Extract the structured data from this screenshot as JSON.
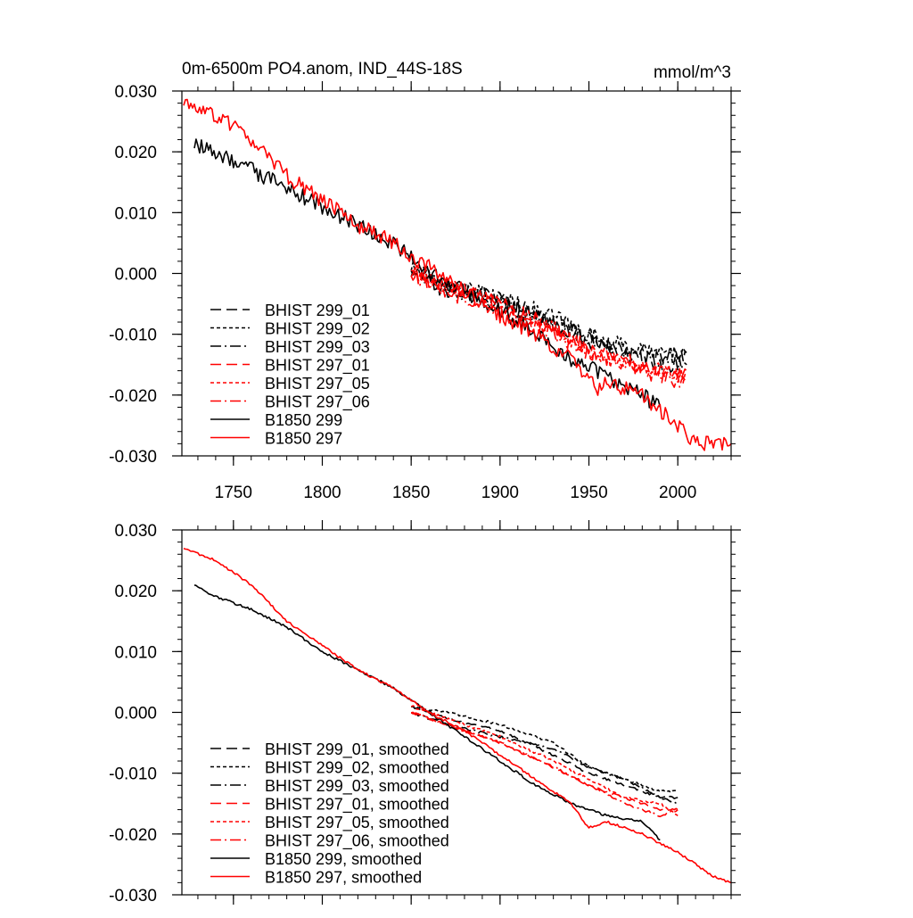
{
  "header": {
    "title": "0m-6500m PO4.anom, IND_44S-18S",
    "units": "mmol/m^3"
  },
  "colors": {
    "black": "#000000",
    "red": "#ff0000"
  },
  "chart_data": [
    {
      "type": "line",
      "panel": "top",
      "title": "0m-6500m PO4.anom, IND_44S-18S",
      "units": "mmol/m^3",
      "xlim": [
        1721,
        2030
      ],
      "ylim": [
        -0.03,
        0.03
      ],
      "x_ticks": [
        1750,
        1800,
        1850,
        1900,
        1950,
        2000
      ],
      "x_tick_labels": [
        "1750",
        "1800",
        "1850",
        "1900",
        "1950",
        "2000"
      ],
      "y_ticks": [
        0.03,
        0.02,
        0.01,
        0.0,
        -0.01,
        -0.02,
        -0.03
      ],
      "y_tick_labels": [
        "0.030",
        "0.020",
        "0.010",
        "0.000",
        "-0.010",
        "-0.020",
        "-0.030"
      ],
      "legend_position": "lower-left",
      "series": [
        {
          "name": "BHIST 299_01",
          "color": "#000000",
          "dash": "long-dash",
          "noise": 0.0013,
          "x": [
            1850,
            1870,
            1900,
            1930,
            1950,
            1970,
            1990,
            2005
          ],
          "y": [
            0.001,
            -0.002,
            -0.004,
            -0.008,
            -0.011,
            -0.013,
            -0.014,
            -0.013
          ]
        },
        {
          "name": "BHIST 299_02",
          "color": "#000000",
          "dash": "short-dash",
          "noise": 0.0013,
          "x": [
            1850,
            1870,
            1900,
            1930,
            1950,
            1970,
            1990,
            2005
          ],
          "y": [
            0.001,
            -0.002,
            -0.004,
            -0.007,
            -0.01,
            -0.012,
            -0.013,
            -0.013
          ]
        },
        {
          "name": "BHIST 299_03",
          "color": "#000000",
          "dash": "dash-dot",
          "noise": 0.0013,
          "x": [
            1850,
            1870,
            1900,
            1930,
            1950,
            1970,
            1990,
            2005
          ],
          "y": [
            0.0,
            -0.003,
            -0.005,
            -0.008,
            -0.011,
            -0.013,
            -0.015,
            -0.015
          ]
        },
        {
          "name": "BHIST 297_01",
          "color": "#ff0000",
          "dash": "long-dash",
          "noise": 0.0013,
          "x": [
            1850,
            1870,
            1900,
            1930,
            1950,
            1970,
            1990,
            2005
          ],
          "y": [
            0.0,
            -0.002,
            -0.005,
            -0.009,
            -0.012,
            -0.014,
            -0.016,
            -0.016
          ]
        },
        {
          "name": "BHIST 297_05",
          "color": "#ff0000",
          "dash": "short-dash",
          "noise": 0.0013,
          "x": [
            1850,
            1870,
            1900,
            1930,
            1950,
            1970,
            1990,
            2005
          ],
          "y": [
            0.001,
            -0.002,
            -0.005,
            -0.009,
            -0.013,
            -0.015,
            -0.016,
            -0.017
          ]
        },
        {
          "name": "BHIST 297_06",
          "color": "#ff0000",
          "dash": "dash-dot",
          "noise": 0.0013,
          "x": [
            1850,
            1870,
            1900,
            1930,
            1950,
            1970,
            1990,
            2005
          ],
          "y": [
            0.0,
            -0.003,
            -0.006,
            -0.01,
            -0.013,
            -0.015,
            -0.017,
            -0.018
          ]
        },
        {
          "name": "B1850 299",
          "color": "#000000",
          "dash": "solid",
          "noise": 0.0013,
          "x": [
            1728,
            1740,
            1760,
            1780,
            1800,
            1820,
            1840,
            1860,
            1880,
            1900,
            1920,
            1940,
            1960,
            1980,
            1990
          ],
          "y": [
            0.021,
            0.02,
            0.017,
            0.014,
            0.011,
            0.008,
            0.005,
            0.0,
            -0.003,
            -0.006,
            -0.01,
            -0.014,
            -0.017,
            -0.02,
            -0.022
          ]
        },
        {
          "name": "B1850 297",
          "color": "#ff0000",
          "dash": "solid",
          "noise": 0.0013,
          "x": [
            1722,
            1740,
            1760,
            1780,
            1800,
            1820,
            1840,
            1860,
            1880,
            1900,
            1920,
            1940,
            1955,
            1960,
            1980,
            2000,
            2010,
            2030
          ],
          "y": [
            0.028,
            0.026,
            0.022,
            0.016,
            0.012,
            0.008,
            0.005,
            0.001,
            -0.003,
            -0.007,
            -0.01,
            -0.014,
            -0.019,
            -0.018,
            -0.02,
            -0.025,
            -0.028,
            -0.028
          ]
        }
      ]
    },
    {
      "type": "line",
      "panel": "bottom",
      "xlim": [
        1721,
        2030
      ],
      "ylim": [
        -0.03,
        0.03
      ],
      "x_ticks": [
        1750,
        1800,
        1850,
        1900,
        1950,
        2000
      ],
      "y_ticks": [
        0.03,
        0.02,
        0.01,
        0.0,
        -0.01,
        -0.02,
        -0.03
      ],
      "y_tick_labels": [
        "0.030",
        "0.020",
        "0.010",
        "0.000",
        "-0.010",
        "-0.020",
        "-0.030"
      ],
      "legend_position": "lower-left",
      "series": [
        {
          "name": "BHIST 299_01, smoothed",
          "color": "#000000",
          "dash": "long-dash",
          "noise": 0.0002,
          "x": [
            1850,
            1870,
            1900,
            1930,
            1950,
            1970,
            1990,
            2000
          ],
          "y": [
            0.001,
            -0.001,
            -0.003,
            -0.007,
            -0.01,
            -0.012,
            -0.014,
            -0.014
          ]
        },
        {
          "name": "BHIST 299_02, smoothed",
          "color": "#000000",
          "dash": "short-dash",
          "noise": 0.0002,
          "x": [
            1850,
            1870,
            1900,
            1930,
            1950,
            1970,
            1990,
            2000
          ],
          "y": [
            0.001,
            0.0,
            -0.002,
            -0.005,
            -0.009,
            -0.011,
            -0.013,
            -0.013
          ]
        },
        {
          "name": "BHIST 299_03, smoothed",
          "color": "#000000",
          "dash": "dash-dot",
          "noise": 0.0002,
          "x": [
            1850,
            1870,
            1900,
            1930,
            1950,
            1970,
            1990,
            2000
          ],
          "y": [
            0.0,
            -0.002,
            -0.004,
            -0.006,
            -0.009,
            -0.011,
            -0.014,
            -0.015
          ]
        },
        {
          "name": "BHIST 297_01, smoothed",
          "color": "#ff0000",
          "dash": "long-dash",
          "noise": 0.0002,
          "x": [
            1850,
            1870,
            1900,
            1930,
            1950,
            1970,
            1990,
            2000
          ],
          "y": [
            0.0,
            -0.002,
            -0.005,
            -0.009,
            -0.012,
            -0.014,
            -0.016,
            -0.016
          ]
        },
        {
          "name": "BHIST 297_05, smoothed",
          "color": "#ff0000",
          "dash": "short-dash",
          "noise": 0.0002,
          "x": [
            1850,
            1870,
            1900,
            1930,
            1950,
            1970,
            1990,
            2000
          ],
          "y": [
            0.001,
            -0.001,
            -0.004,
            -0.008,
            -0.011,
            -0.014,
            -0.015,
            -0.017
          ]
        },
        {
          "name": "BHIST 297_06, smoothed",
          "color": "#ff0000",
          "dash": "dash-dot",
          "noise": 0.0002,
          "x": [
            1850,
            1870,
            1900,
            1930,
            1950,
            1970,
            1990,
            2000
          ],
          "y": [
            0.0,
            -0.002,
            -0.005,
            -0.009,
            -0.012,
            -0.015,
            -0.017,
            -0.016
          ]
        },
        {
          "name": "B1850 299, smoothed",
          "color": "#000000",
          "dash": "solid",
          "noise": 0.0002,
          "x": [
            1728,
            1740,
            1760,
            1780,
            1800,
            1820,
            1840,
            1860,
            1880,
            1900,
            1920,
            1940,
            1960,
            1980,
            1990
          ],
          "y": [
            0.021,
            0.019,
            0.017,
            0.014,
            0.01,
            0.007,
            0.004,
            0.0,
            -0.004,
            -0.008,
            -0.012,
            -0.015,
            -0.017,
            -0.018,
            -0.021
          ]
        },
        {
          "name": "B1850 297, smoothed",
          "color": "#ff0000",
          "dash": "solid",
          "noise": 0.0002,
          "x": [
            1722,
            1740,
            1760,
            1780,
            1800,
            1820,
            1840,
            1860,
            1880,
            1900,
            1920,
            1940,
            1950,
            1960,
            1980,
            2000,
            2020,
            2030
          ],
          "y": [
            0.027,
            0.025,
            0.021,
            0.015,
            0.011,
            0.007,
            0.004,
            0.0,
            -0.003,
            -0.007,
            -0.011,
            -0.015,
            -0.019,
            -0.018,
            -0.02,
            -0.023,
            -0.027,
            -0.028
          ]
        }
      ]
    }
  ]
}
